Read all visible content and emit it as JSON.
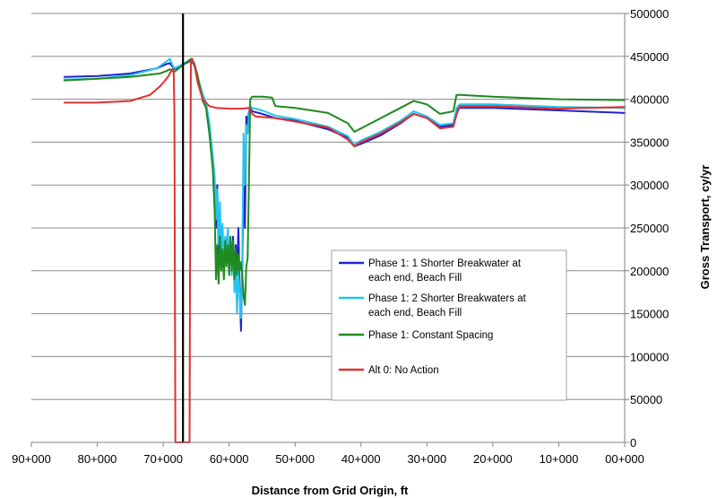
{
  "chart_data": {
    "type": "line",
    "title": "",
    "xlabel": "Distance from Grid Origin, ft",
    "ylabel": "Gross Transport, cy/yr",
    "x_reversed": true,
    "xlim": [
      0,
      90000
    ],
    "ylim": [
      0,
      500000
    ],
    "y_axis_side": "right",
    "grid": "horizontal",
    "legend_position": "center-right",
    "x_ticks": [
      {
        "value": 90000,
        "label": "90+000"
      },
      {
        "value": 80000,
        "label": "80+000"
      },
      {
        "value": 70000,
        "label": "70+000"
      },
      {
        "value": 60000,
        "label": "60+000"
      },
      {
        "value": 50000,
        "label": "50+000"
      },
      {
        "value": 40000,
        "label": "40+000"
      },
      {
        "value": 30000,
        "label": "30+000"
      },
      {
        "value": 20000,
        "label": "20+000"
      },
      {
        "value": 10000,
        "label": "10+000"
      },
      {
        "value": 0,
        "label": "00+000"
      }
    ],
    "y_ticks": [
      {
        "value": 0,
        "label": "0"
      },
      {
        "value": 50000,
        "label": "50000"
      },
      {
        "value": 100000,
        "label": "100000"
      },
      {
        "value": 150000,
        "label": "150000"
      },
      {
        "value": 200000,
        "label": "200000"
      },
      {
        "value": 250000,
        "label": "250000"
      },
      {
        "value": 300000,
        "label": "300000"
      },
      {
        "value": 350000,
        "label": "350000"
      },
      {
        "value": 400000,
        "label": "400000"
      },
      {
        "value": 450000,
        "label": "450000"
      },
      {
        "value": 500000,
        "label": "500000"
      }
    ],
    "vertical_marker": {
      "x": 67000,
      "color": "#000000"
    },
    "series": [
      {
        "name": "Phase 1: 1 Shorter Breakwater at each end, Beach Fill",
        "legend_lines": [
          "Phase 1: 1 Shorter Breakwater at",
          "each end, Beach Fill"
        ],
        "color": "#2222cc",
        "x": [
          85000,
          80000,
          75000,
          71000,
          69500,
          69000,
          68600,
          68300,
          65800,
          65300,
          64800,
          64000,
          63500,
          63000,
          62500,
          62200,
          62000,
          61800,
          61600,
          61400,
          61200,
          61000,
          60800,
          60600,
          60400,
          60200,
          60000,
          59800,
          59600,
          59400,
          59200,
          59000,
          58800,
          58600,
          58400,
          58200,
          58000,
          57800,
          57600,
          57400,
          57200,
          57000,
          56800,
          56500,
          55000,
          53000,
          50000,
          45000,
          42000,
          41000,
          40000,
          37000,
          34000,
          32000,
          30000,
          28000,
          26000,
          25500,
          25000,
          20000,
          10000,
          0
        ],
        "y": [
          426000,
          427000,
          430000,
          436000,
          441000,
          442000,
          438000,
          435000,
          445000,
          440000,
          425000,
          405000,
          395000,
          370000,
          330000,
          290000,
          250000,
          300000,
          220000,
          260000,
          210000,
          240000,
          200000,
          230000,
          215000,
          245000,
          205000,
          235000,
          210000,
          240000,
          190000,
          230000,
          200000,
          250000,
          180000,
          130000,
          210000,
          300000,
          250000,
          380000,
          370000,
          385000,
          390000,
          386000,
          383000,
          378000,
          375000,
          365000,
          355000,
          345000,
          348000,
          358000,
          372000,
          383000,
          378000,
          368000,
          370000,
          388000,
          390000,
          390000,
          387000,
          384000
        ]
      },
      {
        "name": "Phase 1: 2 Shorter Breakwaters at each end, Beach Fill",
        "legend_lines": [
          "Phase 1: 2 Shorter Breakwaters at",
          "each end, Beach Fill"
        ],
        "color": "#22c4ee",
        "x": [
          85000,
          80000,
          75000,
          71000,
          69500,
          69000,
          68600,
          68300,
          65800,
          65300,
          64800,
          64000,
          63500,
          63000,
          62500,
          62200,
          62000,
          61800,
          61600,
          61400,
          61200,
          61000,
          60800,
          60600,
          60400,
          60200,
          60000,
          59800,
          59600,
          59400,
          59200,
          59000,
          58800,
          58600,
          58400,
          58200,
          58000,
          57800,
          57600,
          57400,
          57200,
          57000,
          56800,
          56500,
          55000,
          53000,
          50000,
          45000,
          42000,
          41000,
          40000,
          37000,
          34000,
          32000,
          30000,
          28000,
          26000,
          25500,
          25000,
          20000,
          10000,
          0
        ],
        "y": [
          423000,
          424000,
          428000,
          436000,
          444000,
          447000,
          440000,
          436000,
          446000,
          441000,
          426000,
          406000,
          396000,
          372000,
          335000,
          310000,
          260000,
          295000,
          230000,
          280000,
          220000,
          255000,
          205000,
          240000,
          220000,
          250000,
          210000,
          240000,
          195000,
          230000,
          175000,
          210000,
          150000,
          200000,
          175000,
          145000,
          220000,
          360000,
          300000,
          370000,
          360000,
          380000,
          392000,
          390000,
          387000,
          381000,
          377000,
          368000,
          357000,
          347000,
          352000,
          362000,
          375000,
          386000,
          380000,
          370000,
          372000,
          390000,
          394000,
          394000,
          391000,
          390000
        ]
      },
      {
        "name": "Phase 1: Constant Spacing",
        "legend_lines": [
          "Phase 1: Constant Spacing"
        ],
        "color": "#1f8a1f",
        "x": [
          85000,
          80000,
          75000,
          70500,
          69500,
          69000,
          68600,
          68300,
          65800,
          65300,
          64800,
          64000,
          63500,
          63000,
          62500,
          62200,
          62000,
          61800,
          61600,
          61400,
          61200,
          61000,
          60800,
          60600,
          60400,
          60200,
          60000,
          59800,
          59600,
          59400,
          59200,
          59000,
          58800,
          58600,
          58400,
          58200,
          58000,
          57800,
          57600,
          57400,
          57200,
          57000,
          56800,
          56500,
          55000,
          53500,
          53000,
          50000,
          45000,
          42000,
          41000,
          40000,
          37000,
          34000,
          32000,
          30000,
          28000,
          26000,
          25500,
          25000,
          20000,
          10000,
          0
        ],
        "y": [
          422000,
          424000,
          426000,
          430000,
          433000,
          435000,
          433000,
          432000,
          447000,
          442000,
          428000,
          398000,
          390000,
          360000,
          320000,
          270000,
          190000,
          230000,
          185000,
          240000,
          200000,
          225000,
          190000,
          235000,
          205000,
          230000,
          195000,
          240000,
          200000,
          235000,
          190000,
          225000,
          195000,
          220000,
          200000,
          210000,
          195000,
          170000,
          160000,
          205000,
          215000,
          300000,
          400000,
          403000,
          403000,
          402000,
          392000,
          390000,
          384000,
          372000,
          362000,
          366000,
          378000,
          390000,
          398000,
          394000,
          383000,
          386000,
          405000,
          405000,
          403000,
          400000,
          399000
        ]
      },
      {
        "name": "Alt 0: No Action",
        "legend_lines": [
          "Alt 0: No Action"
        ],
        "color": "#e03030",
        "x": [
          85000,
          80000,
          75000,
          72000,
          70500,
          69800,
          69200,
          68800,
          68600,
          68400,
          68300,
          68200,
          68150,
          68100,
          66000,
          65900,
          65800,
          65600,
          65200,
          64800,
          64000,
          63000,
          62000,
          60000,
          58000,
          57000,
          56500,
          56000,
          53000,
          50000,
          45000,
          42000,
          41000,
          40000,
          37000,
          34000,
          32000,
          30000,
          28000,
          26000,
          25500,
          25000,
          20000,
          10000,
          0
        ],
        "y": [
          396000,
          396000,
          398000,
          405000,
          415000,
          421000,
          427000,
          433000,
          435000,
          431000,
          380000,
          100000,
          0,
          0,
          0,
          300000,
          445000,
          447000,
          438000,
          420000,
          400000,
          392000,
          390000,
          389000,
          389000,
          390000,
          383000,
          380000,
          378000,
          374000,
          367000,
          353000,
          345000,
          350000,
          360000,
          373000,
          383000,
          378000,
          366000,
          368000,
          382000,
          392000,
          392000,
          389000,
          391000
        ]
      }
    ]
  }
}
